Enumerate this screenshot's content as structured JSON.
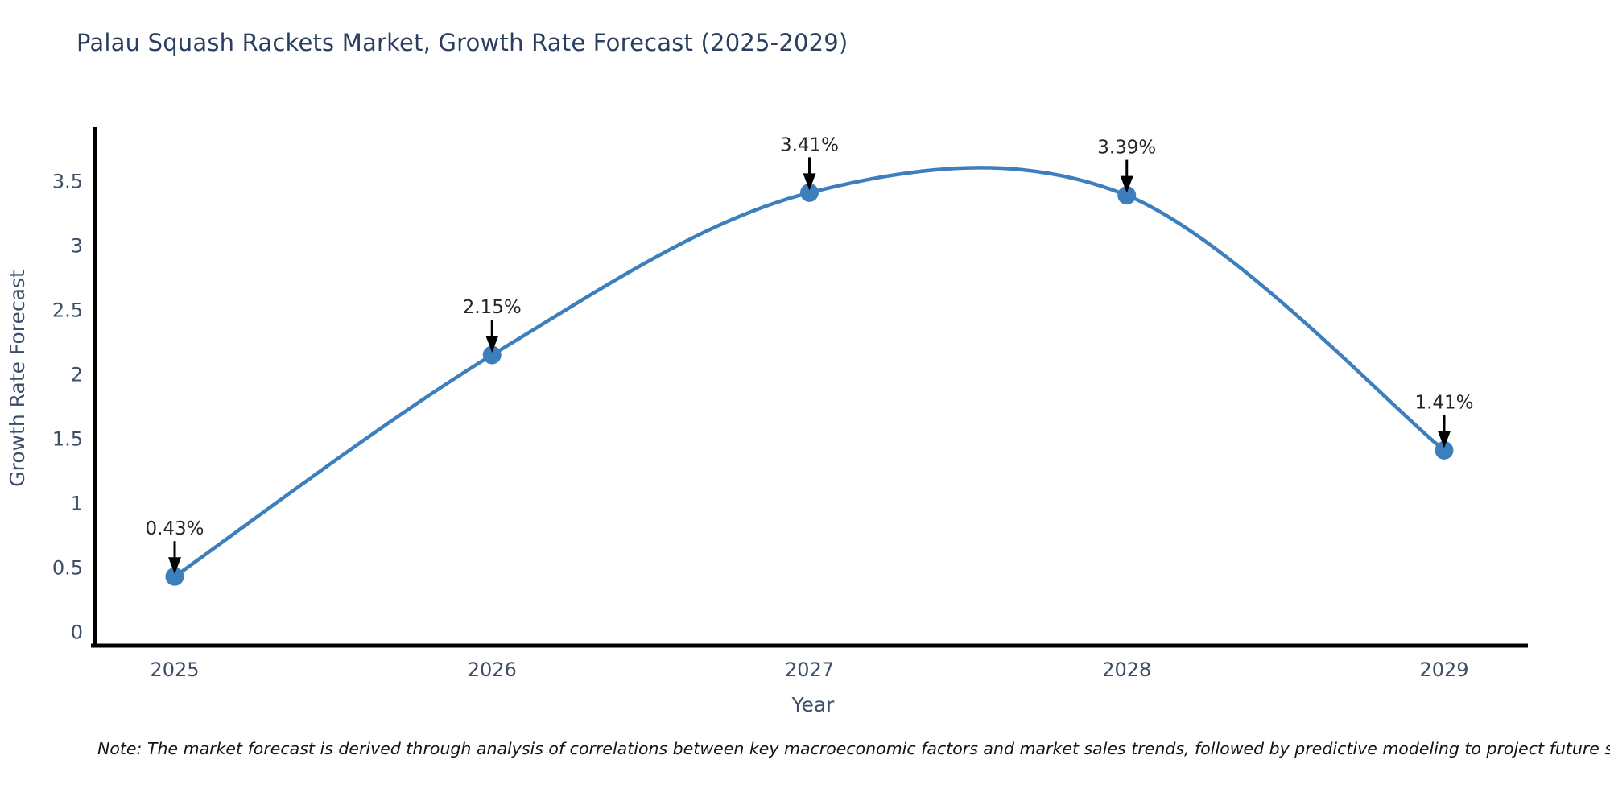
{
  "title": "Palau Squash Rackets Market, Growth Rate Forecast (2025-2029)",
  "note": "Note: The market forecast is derived through analysis of correlations between key macroeconomic factors and market sales trends, followed by predictive modeling to project future sales",
  "colors": {
    "line": "#3d7ebd",
    "marker": "#3d7ebd",
    "axis": "#000000",
    "title_text": "#2a3f5f",
    "tick_text": "#3d4e68",
    "annotation_text": "#22252b",
    "arrow": "#000000",
    "background": "#ffffff"
  },
  "chart_data": {
    "type": "line",
    "title": "Palau Squash Rackets Market, Growth Rate Forecast (2025-2029)",
    "x": [
      "2025",
      "2026",
      "2027",
      "2028",
      "2029"
    ],
    "values": [
      0.43,
      2.15,
      3.41,
      3.39,
      1.41
    ],
    "point_labels": [
      "0.43%",
      "2.15%",
      "3.41%",
      "3.39%",
      "1.41%"
    ],
    "xlabel": "Year",
    "ylabel": "Growth Rate Forecast",
    "ylim": [
      0,
      3.5
    ],
    "ytick_step": 0.5,
    "yticks": [
      0,
      0.5,
      1,
      1.5,
      2,
      2.5,
      3,
      3.5
    ],
    "grid": false,
    "legend": false,
    "line_style": "spline-smoothed",
    "markers": true,
    "annotations": "value labels with black down arrows above each point"
  }
}
